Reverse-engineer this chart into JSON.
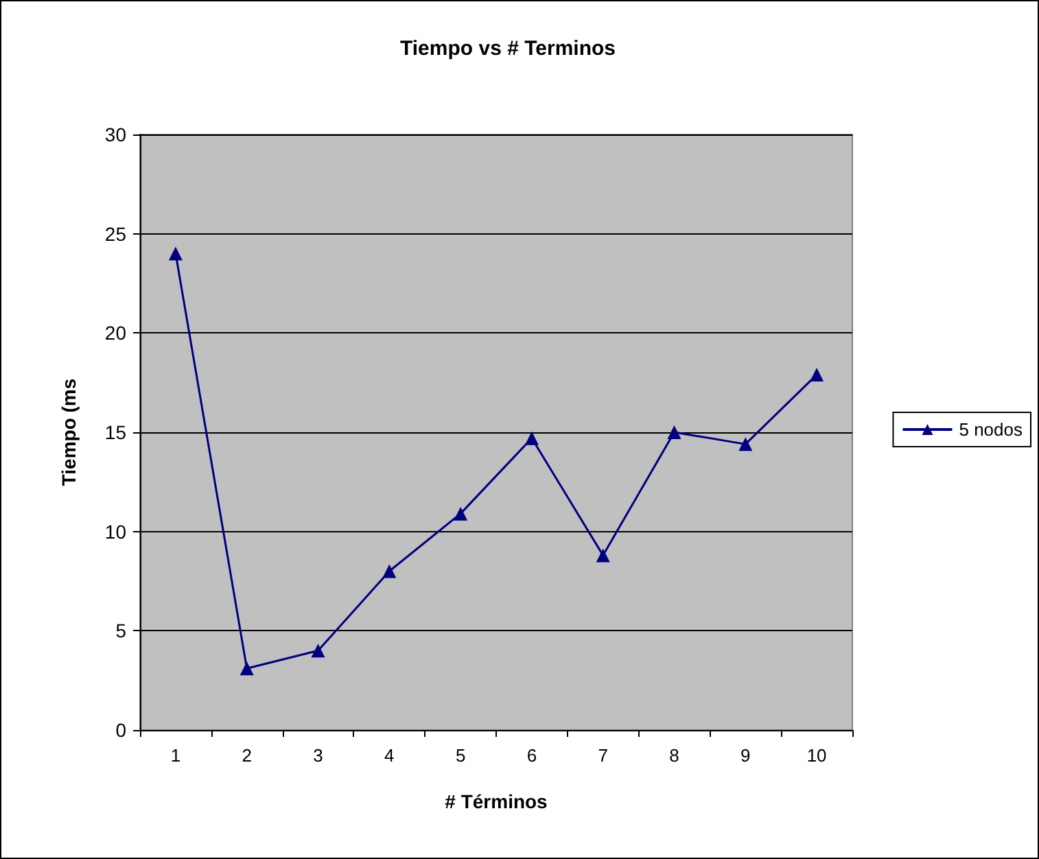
{
  "chart_data": {
    "type": "line",
    "title": "Tiempo vs # Terminos",
    "xlabel": "# Términos",
    "ylabel": "Tiempo (ms",
    "categories": [
      "1",
      "2",
      "3",
      "4",
      "5",
      "6",
      "7",
      "8",
      "9",
      "10"
    ],
    "series": [
      {
        "name": "5 nodos",
        "color": "#000080",
        "values": [
          24,
          3.1,
          4,
          8,
          10.9,
          14.7,
          8.8,
          15,
          14.4,
          17.9
        ]
      }
    ],
    "ylim": [
      0,
      30
    ],
    "yticks": [
      0,
      5,
      10,
      15,
      20,
      25,
      30
    ],
    "grid": "y",
    "legend": "right",
    "marker": "triangle",
    "line_style": "solid"
  }
}
